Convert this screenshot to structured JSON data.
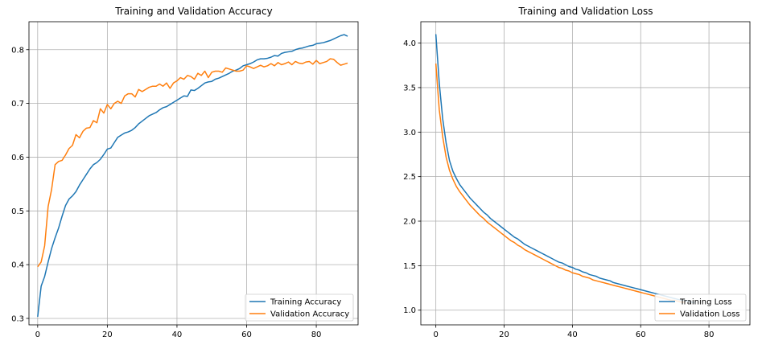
{
  "chart_data": [
    {
      "type": "line",
      "title": "Training and Validation Accuracy",
      "xlabel": "",
      "ylabel": "",
      "xlim": [
        -2.5,
        92
      ],
      "ylim": [
        0.288,
        0.852
      ],
      "xticks": [
        0,
        20,
        40,
        60,
        80
      ],
      "yticks": [
        0.3,
        0.4,
        0.5,
        0.6,
        0.7,
        0.8
      ],
      "grid": true,
      "legend_position": "lower-right",
      "series": [
        {
          "name": "Training Accuracy",
          "color": "#1f77b4",
          "x_start": 0,
          "values": [
            0.303,
            0.36,
            0.378,
            0.405,
            0.43,
            0.45,
            0.468,
            0.49,
            0.51,
            0.522,
            0.528,
            0.536,
            0.548,
            0.558,
            0.568,
            0.578,
            0.586,
            0.59,
            0.596,
            0.605,
            0.615,
            0.617,
            0.627,
            0.637,
            0.641,
            0.645,
            0.647,
            0.65,
            0.655,
            0.662,
            0.667,
            0.672,
            0.677,
            0.68,
            0.683,
            0.688,
            0.692,
            0.694,
            0.698,
            0.702,
            0.706,
            0.71,
            0.714,
            0.713,
            0.725,
            0.724,
            0.728,
            0.733,
            0.738,
            0.74,
            0.741,
            0.745,
            0.747,
            0.75,
            0.753,
            0.756,
            0.76,
            0.762,
            0.765,
            0.77,
            0.772,
            0.774,
            0.777,
            0.781,
            0.783,
            0.783,
            0.784,
            0.786,
            0.789,
            0.788,
            0.793,
            0.795,
            0.796,
            0.797,
            0.8,
            0.802,
            0.803,
            0.805,
            0.807,
            0.808,
            0.811,
            0.812,
            0.813,
            0.815,
            0.817,
            0.82,
            0.823,
            0.826,
            0.828,
            0.825
          ]
        },
        {
          "name": "Validation Accuracy",
          "color": "#ff7f0e",
          "x_start": 0,
          "values": [
            0.396,
            0.405,
            0.435,
            0.508,
            0.54,
            0.586,
            0.592,
            0.594,
            0.604,
            0.616,
            0.622,
            0.642,
            0.636,
            0.648,
            0.654,
            0.655,
            0.668,
            0.664,
            0.69,
            0.682,
            0.698,
            0.69,
            0.7,
            0.704,
            0.7,
            0.714,
            0.718,
            0.718,
            0.712,
            0.726,
            0.722,
            0.726,
            0.73,
            0.732,
            0.732,
            0.736,
            0.732,
            0.738,
            0.728,
            0.738,
            0.742,
            0.748,
            0.745,
            0.752,
            0.75,
            0.745,
            0.756,
            0.752,
            0.76,
            0.748,
            0.758,
            0.76,
            0.76,
            0.758,
            0.766,
            0.764,
            0.762,
            0.76,
            0.76,
            0.762,
            0.77,
            0.768,
            0.765,
            0.768,
            0.771,
            0.768,
            0.77,
            0.774,
            0.77,
            0.776,
            0.772,
            0.774,
            0.777,
            0.772,
            0.778,
            0.775,
            0.774,
            0.777,
            0.778,
            0.773,
            0.78,
            0.774,
            0.776,
            0.778,
            0.783,
            0.782,
            0.776,
            0.771,
            0.773,
            0.775
          ]
        }
      ]
    },
    {
      "type": "line",
      "title": "Training and Validation Loss",
      "xlabel": "",
      "ylabel": "",
      "xlim": [
        -4.4,
        92
      ],
      "ylim": [
        0.835,
        4.24
      ],
      "xticks": [
        0,
        20,
        40,
        60,
        80
      ],
      "yticks": [
        1.0,
        1.5,
        2.0,
        2.5,
        3.0,
        3.5,
        4.0
      ],
      "grid": true,
      "legend_position": "lower-right",
      "series": [
        {
          "name": "Training Loss",
          "color": "#1f77b4",
          "x_start": 0,
          "values": [
            4.1,
            3.55,
            3.15,
            2.88,
            2.68,
            2.56,
            2.48,
            2.41,
            2.36,
            2.31,
            2.26,
            2.22,
            2.18,
            2.14,
            2.1,
            2.07,
            2.03,
            2.0,
            1.97,
            1.94,
            1.91,
            1.88,
            1.85,
            1.82,
            1.8,
            1.77,
            1.74,
            1.72,
            1.7,
            1.68,
            1.66,
            1.64,
            1.62,
            1.6,
            1.58,
            1.56,
            1.54,
            1.53,
            1.51,
            1.49,
            1.48,
            1.46,
            1.45,
            1.43,
            1.42,
            1.4,
            1.39,
            1.38,
            1.36,
            1.35,
            1.34,
            1.33,
            1.31,
            1.3,
            1.29,
            1.28,
            1.27,
            1.26,
            1.25,
            1.24,
            1.23,
            1.22,
            1.21,
            1.2,
            1.19,
            1.18,
            1.17,
            1.16,
            1.15,
            1.14,
            1.13,
            1.12,
            1.11,
            1.11,
            1.1,
            1.09,
            1.08
          ]
        },
        {
          "name": "Validation Loss",
          "color": "#ff7f0e",
          "x_start": 0,
          "values": [
            3.77,
            3.25,
            2.95,
            2.72,
            2.57,
            2.47,
            2.39,
            2.33,
            2.28,
            2.23,
            2.18,
            2.14,
            2.1,
            2.06,
            2.03,
            1.99,
            1.96,
            1.93,
            1.9,
            1.87,
            1.84,
            1.81,
            1.78,
            1.76,
            1.73,
            1.71,
            1.68,
            1.66,
            1.64,
            1.62,
            1.6,
            1.58,
            1.56,
            1.54,
            1.52,
            1.5,
            1.48,
            1.47,
            1.45,
            1.44,
            1.42,
            1.41,
            1.4,
            1.38,
            1.37,
            1.36,
            1.34,
            1.33,
            1.32,
            1.31,
            1.3,
            1.29,
            1.28,
            1.27,
            1.26,
            1.25,
            1.24,
            1.23,
            1.22,
            1.21,
            1.2,
            1.19,
            1.18,
            1.17,
            1.16,
            1.15,
            1.14,
            1.13,
            1.12,
            1.11,
            1.11,
            1.1,
            1.09,
            1.09
          ]
        }
      ]
    }
  ]
}
